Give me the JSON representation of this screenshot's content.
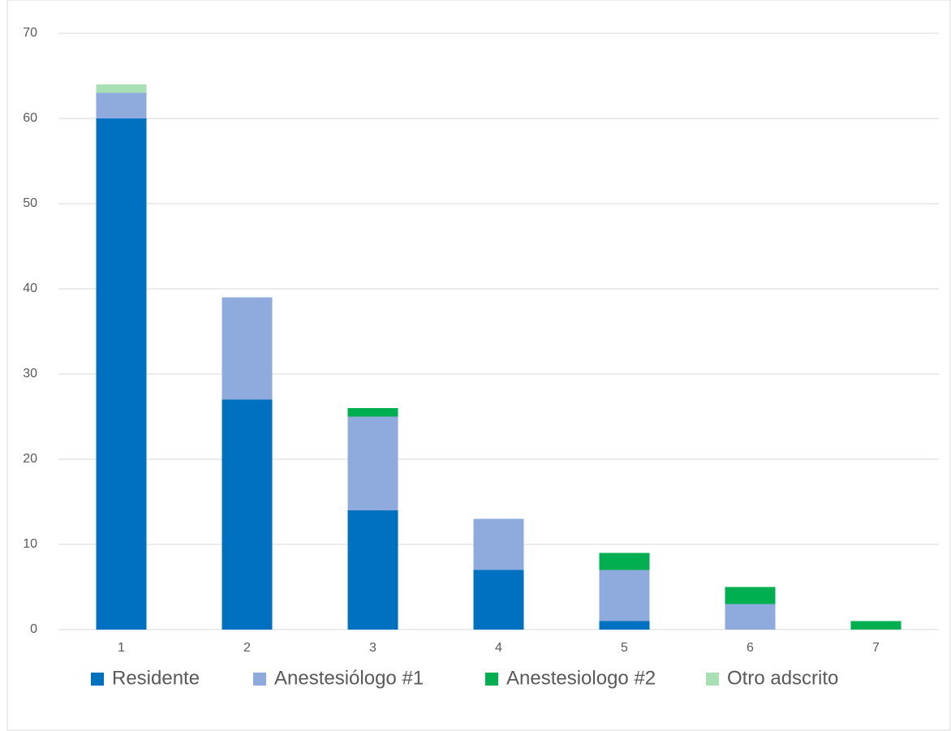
{
  "chart_data": {
    "type": "stacked_bar",
    "categories": [
      "1",
      "2",
      "3",
      "4",
      "5",
      "6",
      "7"
    ],
    "series": [
      {
        "name": "Residente",
        "color": "#0070c0",
        "values": [
          60,
          27,
          14,
          7,
          1,
          0,
          0
        ]
      },
      {
        "name": "Anestesiólogo #1",
        "color": "#8faadc",
        "values": [
          3,
          12,
          11,
          6,
          6,
          3,
          0
        ]
      },
      {
        "name": "Anestesiologo #2",
        "color": "#00b050",
        "values": [
          0,
          0,
          1,
          0,
          2,
          2,
          1
        ]
      },
      {
        "name": "Otro adscrito",
        "color": "#a9dfb4",
        "values": [
          1,
          0,
          0,
          0,
          0,
          0,
          0
        ]
      }
    ],
    "ylim": [
      0,
      70
    ],
    "yticks": [
      0,
      10,
      20,
      30,
      40,
      50,
      60,
      70
    ],
    "grid": true,
    "legend": "bottom"
  }
}
